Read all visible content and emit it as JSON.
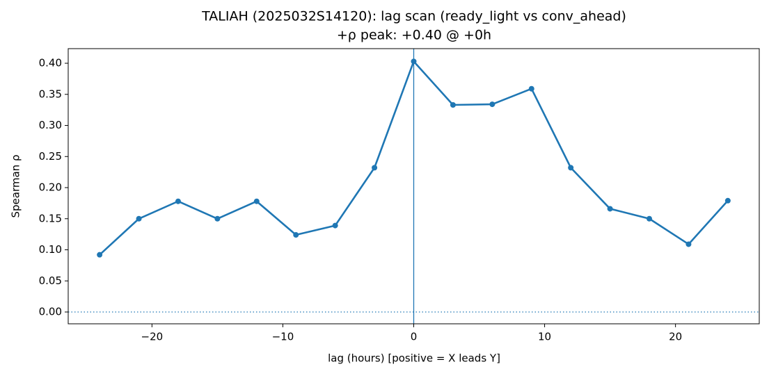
{
  "chart_data": {
    "type": "line",
    "title": "TALIAH (2025032S14120): lag scan (ready_light vs conv_ahead)",
    "subtitle": "+ρ peak: +0.40 @ +0h",
    "x_label": "lag (hours) [positive = X leads Y]",
    "y_label": "Spearman ρ",
    "x": [
      -24,
      -21,
      -18,
      -15,
      -12,
      -9,
      -6,
      -3,
      0,
      3,
      6,
      9,
      12,
      15,
      18,
      21,
      24
    ],
    "values": [
      0.092,
      0.15,
      0.178,
      0.15,
      0.178,
      0.124,
      0.139,
      0.232,
      0.403,
      0.333,
      0.334,
      0.359,
      0.232,
      0.166,
      0.15,
      0.109,
      0.179
    ],
    "color": "#1f77b4",
    "xlim": [
      -26.4,
      26.4
    ],
    "xticks": [
      {
        "value": -20,
        "label": "−20"
      },
      {
        "value": -10,
        "label": "−10"
      },
      0,
      10,
      20
    ],
    "ylim": [
      -0.019,
      0.4235
    ],
    "yticks": [
      {
        "value": 0,
        "label": "0.00"
      },
      {
        "value": 0.05,
        "label": "0.05"
      },
      {
        "value": 0.1,
        "label": "0.10"
      },
      {
        "value": 0.15,
        "label": "0.15"
      },
      {
        "value": 0.2,
        "label": "0.20"
      },
      {
        "value": 0.25,
        "label": "0.25"
      },
      {
        "value": 0.3,
        "label": "0.30"
      },
      {
        "value": 0.35,
        "label": "0.35"
      },
      {
        "value": 0.4,
        "label": "0.40"
      }
    ],
    "reference_lines": [
      {
        "axis": "x",
        "value": 0,
        "style": "solid"
      },
      {
        "axis": "y",
        "value": 0,
        "style": "dotted"
      }
    ],
    "grid": false
  }
}
